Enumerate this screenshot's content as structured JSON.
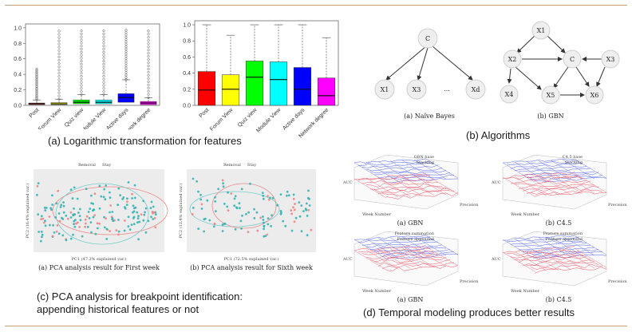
{
  "captions": {
    "a": "(a) Logarithmic transformation for features",
    "b": "(b) Algorithms",
    "c1": "(c) PCA analysis for breakpoint identification:",
    "c2": "appending historical features or not",
    "d": "(d) Temporal modeling produces better results"
  },
  "chart_data": [
    {
      "type": "box",
      "panel": "a-left",
      "categories": [
        "Post",
        "Forum View",
        "Quiz view",
        "Module View",
        "Active days",
        "Network degree"
      ],
      "y_ticks": [
        "0.0",
        "0.2",
        "0.4",
        "0.6",
        "0.8",
        "1.0"
      ],
      "ylim": [
        0,
        1.05
      ],
      "colors": [
        "#ff0000",
        "#ffff00",
        "#00ff00",
        "#00ffff",
        "#0000ff",
        "#ff00ff"
      ],
      "boxes": [
        {
          "q1": 0.01,
          "median": 0.02,
          "q3": 0.03,
          "max": 0.07
        },
        {
          "q1": 0.01,
          "median": 0.02,
          "q3": 0.035,
          "max": 0.08
        },
        {
          "q1": 0.02,
          "median": 0.04,
          "q3": 0.07,
          "max": 0.14
        },
        {
          "q1": 0.02,
          "median": 0.04,
          "q3": 0.07,
          "max": 0.14
        },
        {
          "q1": 0.04,
          "median": 0.1,
          "q3": 0.15,
          "max": 0.33
        },
        {
          "q1": 0.01,
          "median": 0.03,
          "q3": 0.05,
          "max": 0.1
        }
      ]
    },
    {
      "type": "box",
      "panel": "a-right",
      "categories": [
        "Post",
        "Forum View",
        "Quiz view",
        "Module View",
        "Active days",
        "Network degree"
      ],
      "y_ticks": [
        "0.0",
        "0.2",
        "0.4",
        "0.6",
        "0.8",
        "1.0"
      ],
      "ylim": [
        0,
        1.05
      ],
      "colors": [
        "#ff0000",
        "#ffff00",
        "#00ff00",
        "#00ffff",
        "#0000ff",
        "#ff00ff"
      ],
      "boxes": [
        {
          "q1": 0.0,
          "median": 0.19,
          "q3": 0.42,
          "max": 1.0
        },
        {
          "q1": 0.0,
          "median": 0.2,
          "q3": 0.38,
          "max": 0.87
        },
        {
          "q1": 0.0,
          "median": 0.35,
          "q3": 0.55,
          "max": 1.0
        },
        {
          "q1": 0.0,
          "median": 0.32,
          "q3": 0.54,
          "max": 1.0
        },
        {
          "q1": 0.0,
          "median": 0.2,
          "q3": 0.47,
          "max": 1.0
        },
        {
          "q1": 0.0,
          "median": 0.12,
          "q3": 0.34,
          "max": 0.84
        }
      ]
    }
  ],
  "nb": {
    "root": "C",
    "leaves": [
      "X1",
      "X3",
      "...",
      "Xd"
    ],
    "caption": "(a)  Naïve Bayes"
  },
  "gbn": {
    "nodes": [
      "X1",
      "X2",
      "C",
      "X3",
      "X4",
      "X5",
      "X6"
    ],
    "caption": "(b)  GBN"
  },
  "pca": {
    "left_legend": [
      "Removal",
      "Stay"
    ],
    "right_legend": [
      "Removal",
      "Stay"
    ],
    "left_xlabel": "PC1 (47.2% explained var.)",
    "right_xlabel": "PC1 (72.5% explained var.)",
    "left_ylabel": "PC2 (16.4% explained var.)",
    "right_ylabel": "PC2 (12.4% explained var.)",
    "left_caption": "(a)  PCA analysis result for First week",
    "right_caption": "(b)  PCA analysis result for Sixth week"
  },
  "temporal": {
    "tl_legend": [
      "GBN base",
      "Stacking"
    ],
    "tr_legend": [
      "C4.5 base",
      "Stacking"
    ],
    "bl_legend": [
      "Feature summation",
      "Feature appended"
    ],
    "br_legend": [
      "Feature summation",
      "Feature appended"
    ],
    "zlabel": "AUC",
    "xlabel": "Week Number",
    "ylabel": "Precision",
    "tl_caption": "(a)  GBN",
    "tr_caption": "(b)  C4.5",
    "bl_caption": "(a)  GBN",
    "br_caption": "(b)  C4.5"
  }
}
